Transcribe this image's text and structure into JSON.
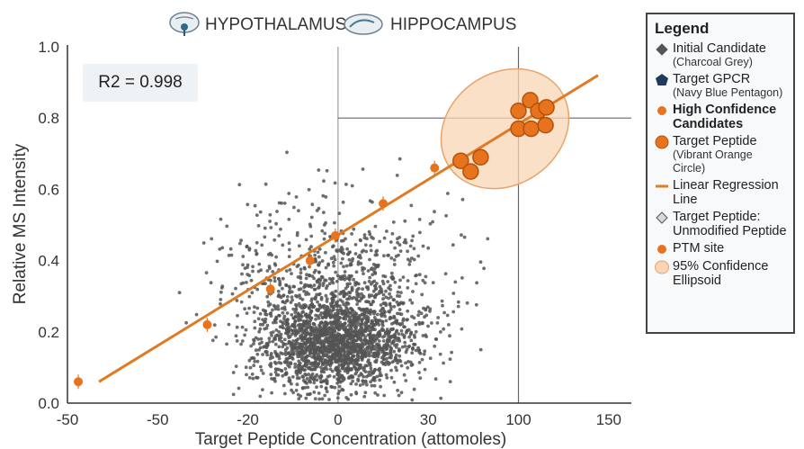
{
  "header": {
    "region_1": "HYPOTHALAMUS",
    "region_2": "HIPPOCAMPUS"
  },
  "stats": {
    "r2_text": "R2 = 0.998"
  },
  "legend": {
    "title": "Legend",
    "items": [
      {
        "label": "Initial Candidate",
        "sub": "(Charcoal Grey)",
        "symbol": "diamond",
        "color": "#555555",
        "bold": false
      },
      {
        "label": "Target GPCR",
        "sub": "(Navy Blue Pentagon)",
        "symbol": "pentagon",
        "color": "#1f3a5a",
        "bold": false
      },
      {
        "label": "High Confidence Candidates",
        "sub": "",
        "symbol": "circle-small",
        "color": "#e8731e",
        "bold": true
      },
      {
        "label": "Target Peptide",
        "sub": "(Vibrant Orange Circle)",
        "symbol": "circle",
        "color": "#e8731e",
        "bold": false
      },
      {
        "label": "Linear Regression Line",
        "sub": "",
        "symbol": "line",
        "color": "#e07b24",
        "bold": false
      },
      {
        "label": "Target Peptide: Unmodified Peptide",
        "sub": "",
        "symbol": "diamond-light",
        "color": "#d8d8d8",
        "bold": false
      },
      {
        "label": "PTM site",
        "sub": "",
        "symbol": "circle-small",
        "color": "#e8731e",
        "bold": false
      },
      {
        "label": "95% Confidence Ellipsoid",
        "sub": "",
        "symbol": "ellipse",
        "color": "#f8d5b4",
        "bold": false
      }
    ]
  },
  "chart_data": {
    "type": "scatter",
    "xlabel": "Target Peptide Concentration (attomoles)",
    "ylabel": "Relative MS Intensity",
    "x_ticks": [
      "-50",
      "-50",
      "-20",
      "0",
      "30",
      "100",
      "150"
    ],
    "y_ticks": [
      "0.0",
      "0.2",
      "0.4",
      "0.6",
      "0.8",
      "1.0"
    ],
    "ylim": [
      0,
      1.0
    ],
    "grid": "reference lines at x=0 (ticks index 3), x=100 (index 5) and y=0.8",
    "regression": {
      "from": [
        -118,
        0.06
      ],
      "to": [
        127,
        0.92
      ],
      "r2": 0.998
    },
    "background_points": {
      "count": 2600,
      "color": "#555555",
      "y_range": [
        0.0,
        0.74
      ],
      "density_center": [
        0,
        0.18
      ]
    },
    "regression_markers": [
      {
        "tick_pos": 0.15,
        "y": 0.06
      },
      {
        "tick_pos": 1.58,
        "y": 0.22
      },
      {
        "tick_pos": 2.28,
        "y": 0.32
      },
      {
        "tick_pos": 2.72,
        "y": 0.4
      },
      {
        "tick_pos": 3.0,
        "y": 0.47
      },
      {
        "tick_pos": 3.53,
        "y": 0.56
      },
      {
        "tick_pos": 4.1,
        "y": 0.66
      }
    ],
    "high_confidence": [
      {
        "tick_pos": 4.36,
        "y": 0.68
      },
      {
        "tick_pos": 4.47,
        "y": 0.65
      },
      {
        "tick_pos": 4.58,
        "y": 0.69
      },
      {
        "tick_pos": 5.0,
        "y": 0.82
      },
      {
        "tick_pos": 5.0,
        "y": 0.77
      },
      {
        "tick_pos": 5.13,
        "y": 0.85
      },
      {
        "tick_pos": 5.14,
        "y": 0.77
      },
      {
        "tick_pos": 5.22,
        "y": 0.82
      },
      {
        "tick_pos": 5.3,
        "y": 0.78
      },
      {
        "tick_pos": 5.31,
        "y": 0.83
      }
    ],
    "ellipse": {
      "center_tick_pos": 4.85,
      "center_y": 0.77,
      "color": "#f8d5b4"
    },
    "colors": {
      "points": "#555555",
      "line": "#e07b24",
      "markers": "#e8731e",
      "marker_stroke": "#b3520a"
    }
  }
}
